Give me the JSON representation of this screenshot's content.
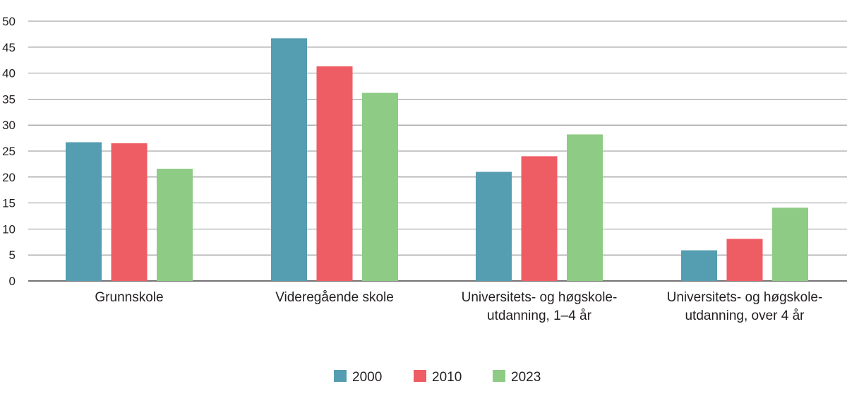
{
  "chart_data": {
    "type": "bar",
    "categories": [
      [
        "Grunnskole"
      ],
      [
        "Videregående skole"
      ],
      [
        "Universitets- og høgskole-",
        "utdanning, 1–4 år"
      ],
      [
        "Universitets- og høgskole-",
        "utdanning, over 4 år"
      ]
    ],
    "series": [
      {
        "name": "2000",
        "color": "#559db0",
        "values": [
          26.7,
          46.7,
          21.0,
          5.9
        ]
      },
      {
        "name": "2010",
        "color": "#ef5d64",
        "values": [
          26.5,
          41.3,
          24.0,
          8.1
        ]
      },
      {
        "name": "2023",
        "color": "#8ecb85",
        "values": [
          21.6,
          36.2,
          28.2,
          14.1
        ]
      }
    ],
    "ylim": [
      0,
      50
    ],
    "yticks": [
      0,
      5,
      10,
      15,
      20,
      25,
      30,
      35,
      40,
      45,
      50
    ],
    "grid": true,
    "legend_position": "bottom-center",
    "title": "",
    "xlabel": "",
    "ylabel": ""
  }
}
